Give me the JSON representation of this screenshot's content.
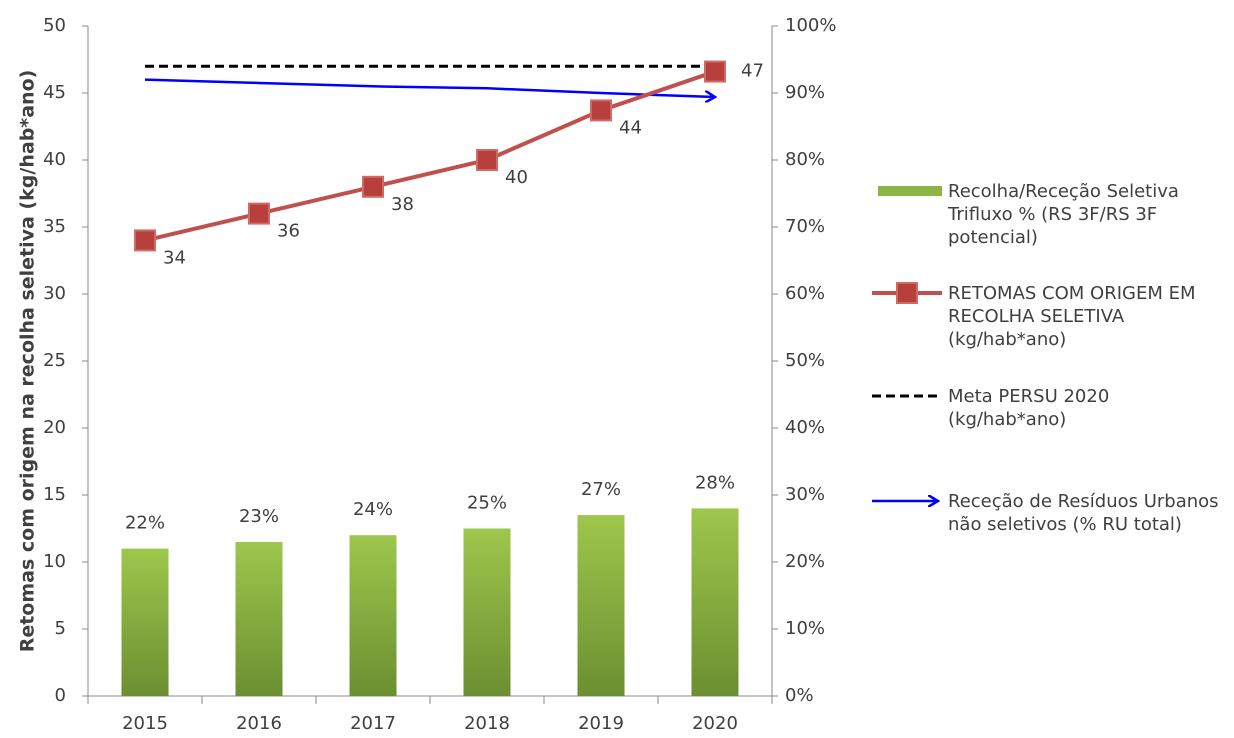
{
  "chart_data": {
    "type": "bar_line",
    "y_label": "Retomas com origem na recolha seletiva (kg/hab*ano)",
    "categories": [
      "2015",
      "2016",
      "2017",
      "2018",
      "2019",
      "2020"
    ],
    "ylim": [
      0,
      50
    ],
    "yticks": [
      0,
      5,
      10,
      15,
      20,
      25,
      30,
      35,
      40,
      45,
      50
    ],
    "y2lim": [
      0,
      100
    ],
    "y2ticks": [
      {
        "value": 0,
        "label": "0%"
      },
      {
        "value": 10,
        "label": "10%"
      },
      {
        "value": 20,
        "label": "20%"
      },
      {
        "value": 30,
        "label": "30%"
      },
      {
        "value": 40,
        "label": "40%"
      },
      {
        "value": 50,
        "label": "50%"
      },
      {
        "value": 60,
        "label": "60%"
      },
      {
        "value": 70,
        "label": "70%"
      },
      {
        "value": 80,
        "label": "80%"
      },
      {
        "value": 90,
        "label": "90%"
      },
      {
        "value": 100,
        "label": "100%"
      }
    ],
    "series": [
      {
        "name": "Recolha/Receção Seletiva Trifluxo % (RS 3F/RS 3F potencial)",
        "type": "bar",
        "axis": "y2",
        "color": "#8db543",
        "values": [
          22,
          23,
          24,
          25,
          27,
          28
        ],
        "value_labels": [
          "22%",
          "23%",
          "24%",
          "25%",
          "27%",
          "28%"
        ]
      },
      {
        "name": "RETOMAS COM ORIGEM EM RECOLHA SELETIVA (kg/hab*ano)",
        "type": "line",
        "color": "#c0504d",
        "values": [
          34,
          36,
          38,
          40,
          43.7,
          46.6
        ],
        "value_labels": [
          "34",
          "36",
          "38",
          "40",
          "44",
          "47"
        ]
      },
      {
        "name": "Meta PERSU 2020 (kg/hab*ano)",
        "type": "dashed",
        "color": "#000000",
        "values": [
          47,
          47,
          47,
          47,
          47,
          47
        ]
      },
      {
        "name": "Receção de Resíduos Urbanos não seletivos  (% RU total)",
        "type": "arrow",
        "axis": "y2",
        "color": "#0000ff",
        "values": [
          92,
          91.5,
          91,
          90.7,
          90,
          89.4
        ]
      }
    ]
  }
}
